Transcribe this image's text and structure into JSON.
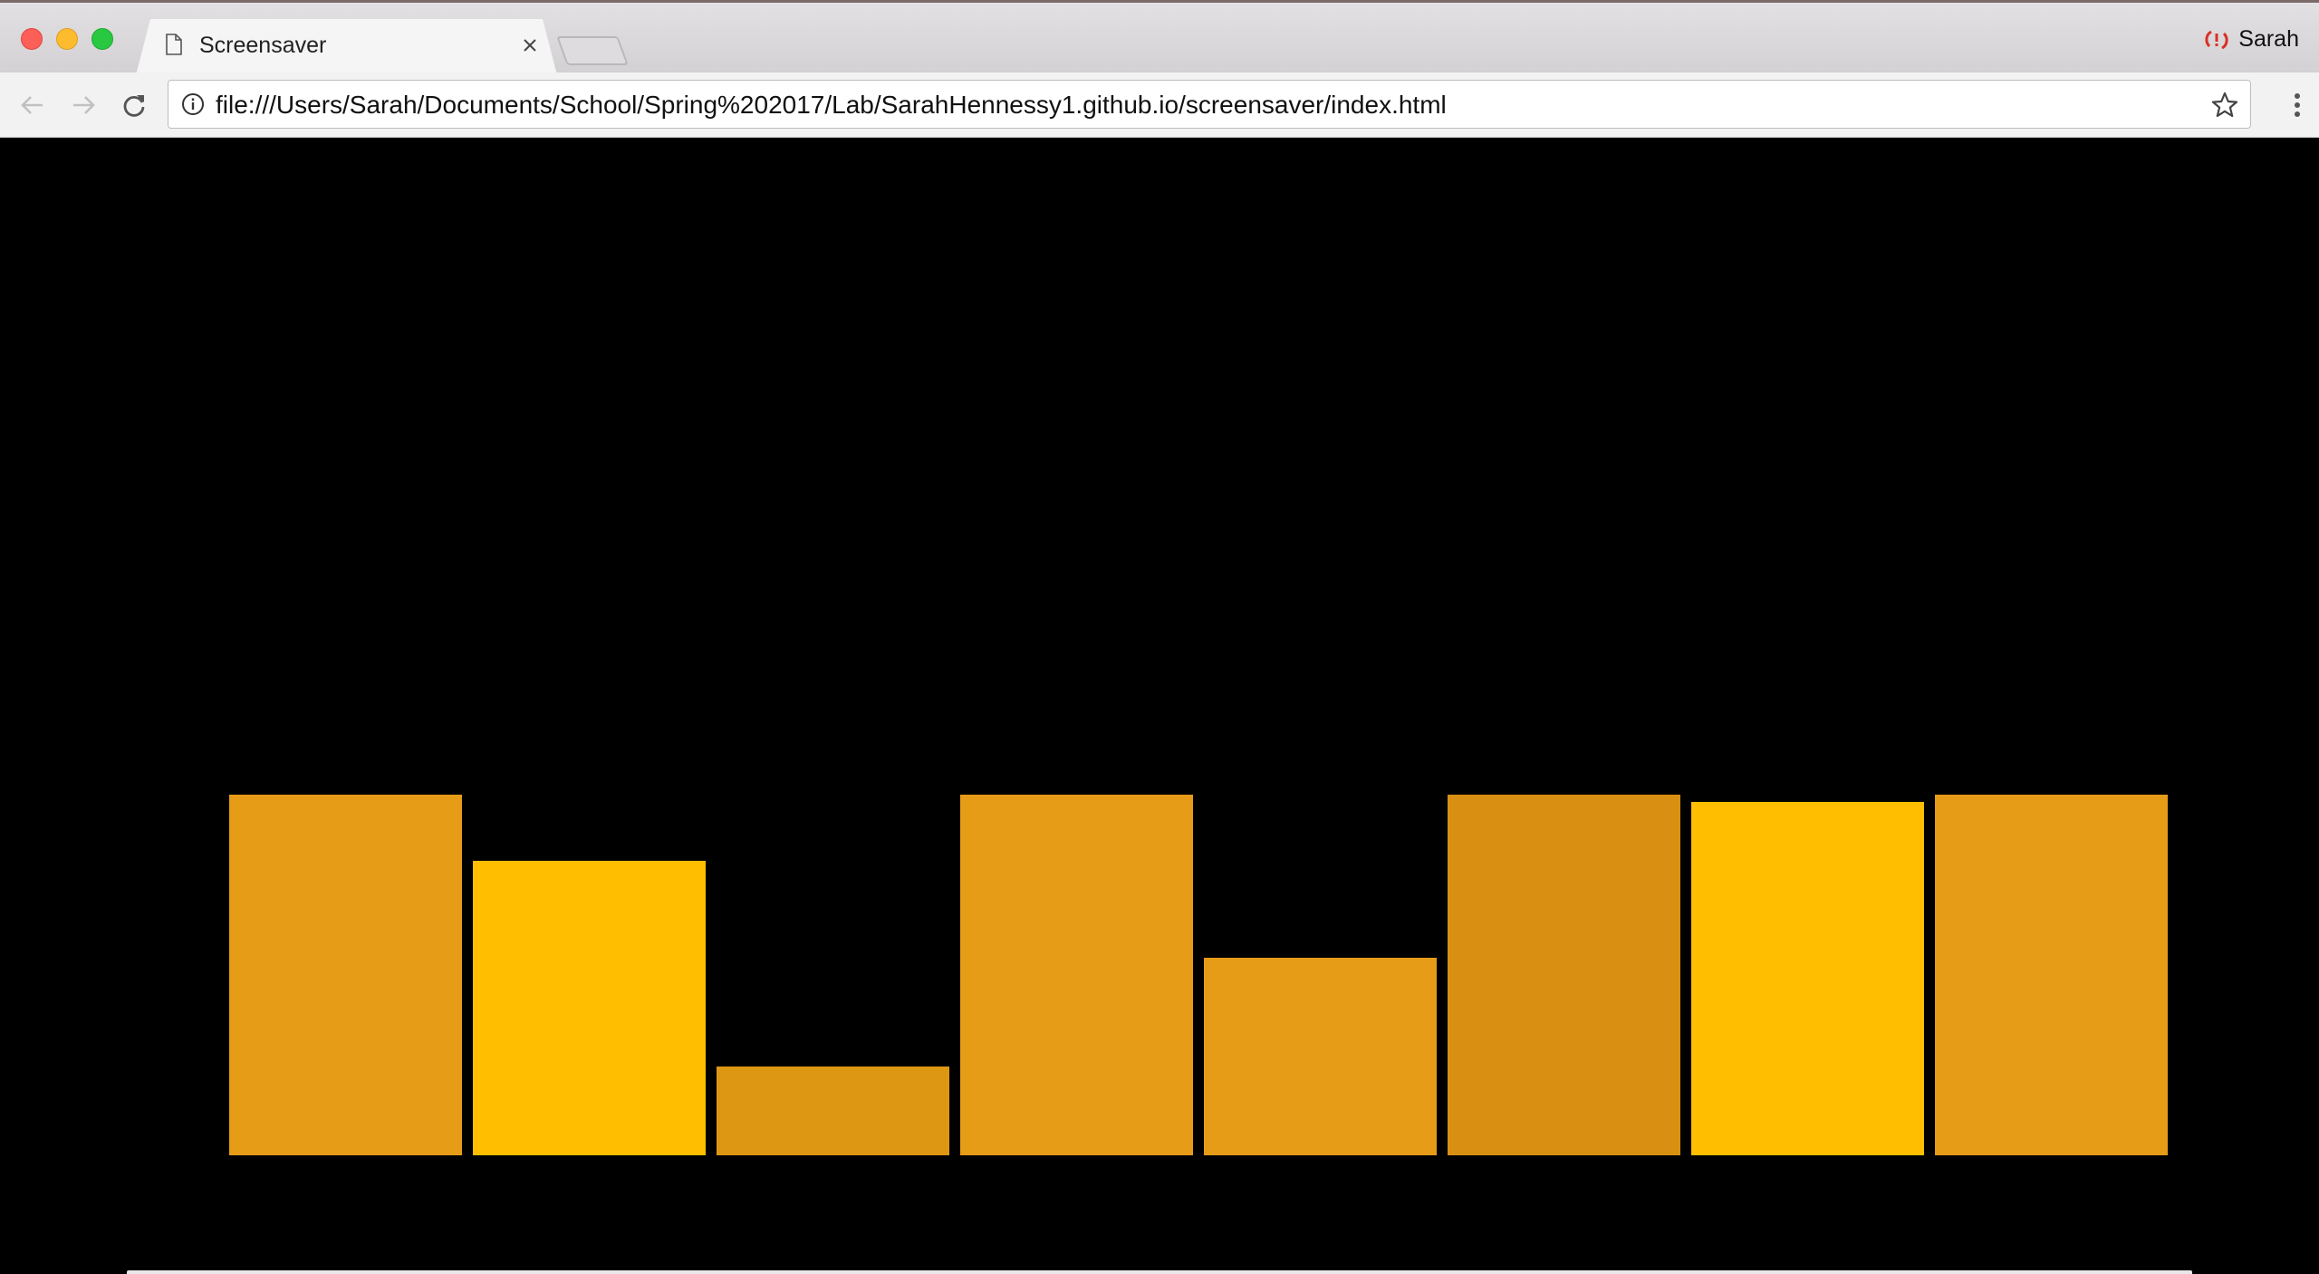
{
  "window": {
    "controls": [
      "close",
      "minimize",
      "maximize"
    ]
  },
  "tab": {
    "title": "Screensaver",
    "icon": "document-icon",
    "close_icon": "close-icon"
  },
  "profile": {
    "name": "Sarah",
    "icon": "sync-error-icon",
    "icon_color": "#d93025"
  },
  "toolbar": {
    "back_icon": "arrow-left-icon",
    "forward_icon": "arrow-right-icon",
    "reload_icon": "reload-icon",
    "url": "file:///Users/Sarah/Documents/School/Spring%202017/Lab/SarahHennessy1.github.io/screensaver/index.html",
    "info_icon": "info-icon",
    "bookmark_icon": "star-icon",
    "menu_icon": "more-vertical-icon"
  },
  "page": {
    "background": "#000000",
    "bars": [
      {
        "level": 1.0,
        "color": "#e69c17"
      },
      {
        "level": 0.816,
        "color": "#ffbe00"
      },
      {
        "level": 0.245,
        "color": "#de9713"
      },
      {
        "level": 1.0,
        "color": "#e69c17"
      },
      {
        "level": 0.547,
        "color": "#e69c17"
      },
      {
        "level": 1.0,
        "color": "#d99012"
      },
      {
        "level": 0.98,
        "color": "#ffbe00"
      },
      {
        "level": 1.0,
        "color": "#e69c17"
      }
    ]
  }
}
